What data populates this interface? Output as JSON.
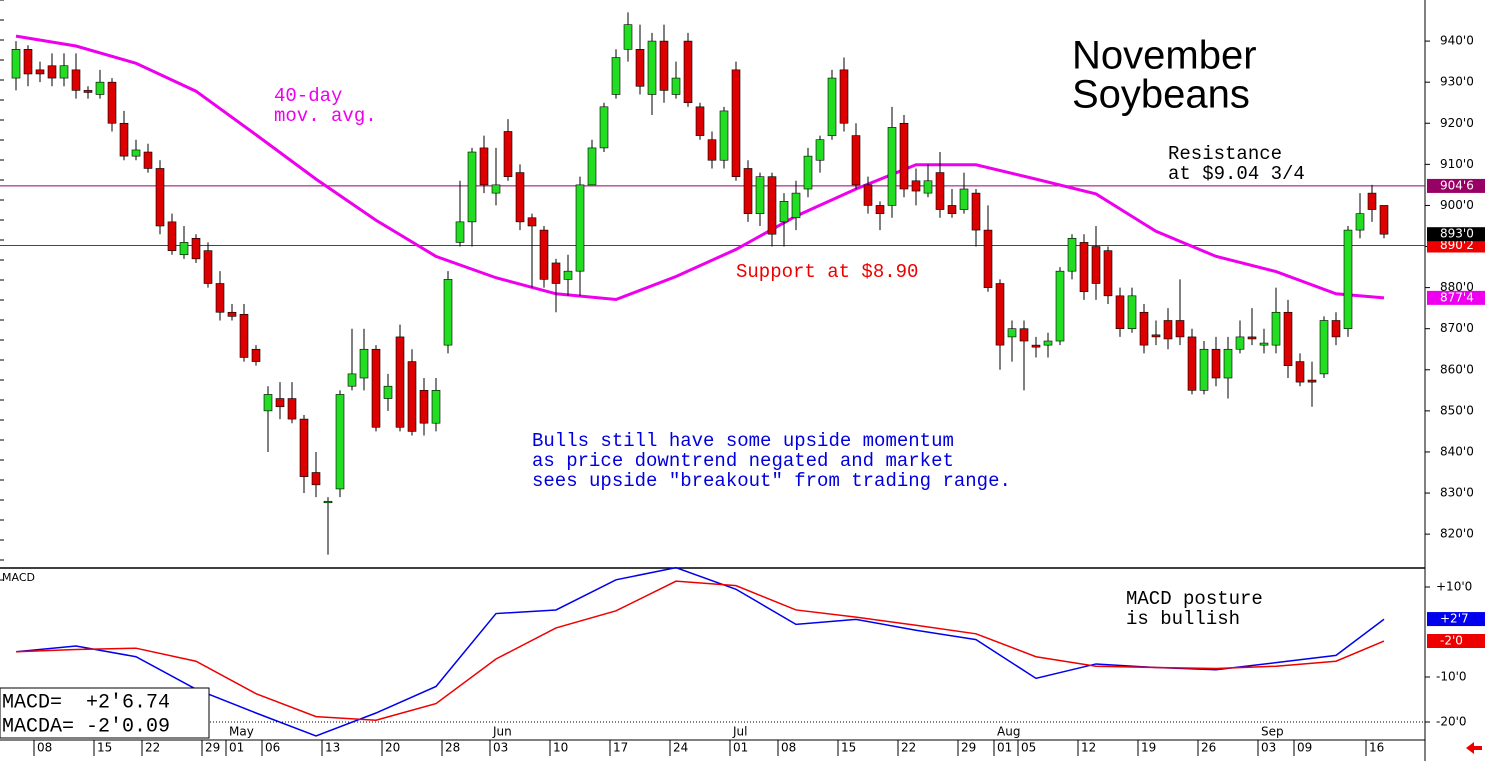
{
  "chart_data": {
    "type": "candlestick",
    "title_lines": [
      "November",
      "Soybeans"
    ],
    "categories": [
      null,
      null,
      "08",
      null,
      null,
      null,
      null,
      "15",
      null,
      null,
      null,
      "22",
      null,
      null,
      null,
      null,
      "29",
      null,
      "01",
      null,
      null,
      "06",
      null,
      null,
      null,
      null,
      "13",
      null,
      null,
      null,
      null,
      "20",
      null,
      null,
      null,
      null,
      "28",
      null,
      null,
      null,
      "03",
      null,
      null,
      null,
      null,
      "10",
      null,
      null,
      null,
      null,
      "17",
      null,
      null,
      null,
      null,
      "24",
      null,
      null,
      null,
      null,
      "01",
      null,
      null,
      null,
      "08",
      null,
      null,
      null,
      null,
      "15",
      null,
      null,
      null,
      null,
      "22",
      null,
      null,
      null,
      null,
      "29",
      null,
      null,
      "01",
      null,
      "05",
      null,
      null,
      null,
      null,
      "12",
      null,
      null,
      null,
      null,
      "19",
      null,
      null,
      null,
      null,
      "26",
      null,
      null,
      null,
      null,
      "03",
      null,
      null,
      "09",
      null,
      null,
      null,
      null,
      null,
      "16",
      null
    ],
    "months": [
      null,
      null,
      null,
      null,
      null,
      null,
      null,
      null,
      null,
      null,
      null,
      null,
      null,
      null,
      null,
      null,
      null,
      null,
      "May",
      null,
      null,
      null,
      null,
      null,
      null,
      null,
      null,
      null,
      null,
      null,
      null,
      null,
      null,
      null,
      null,
      null,
      null,
      null,
      null,
      null,
      "Jun",
      null,
      null,
      null,
      null,
      null,
      null,
      null,
      null,
      null,
      null,
      null,
      null,
      null,
      null,
      null,
      null,
      null,
      null,
      null,
      "Jul",
      null,
      null,
      null,
      null,
      null,
      null,
      null,
      null,
      null,
      null,
      null,
      null,
      null,
      null,
      null,
      null,
      null,
      null,
      null,
      null,
      null,
      "Aug",
      null,
      null,
      null,
      null,
      null,
      null,
      null,
      null,
      null,
      null,
      null,
      null,
      null,
      null,
      null,
      null,
      null,
      null,
      null,
      null,
      null,
      "Sep",
      null,
      null,
      null,
      null,
      null,
      null,
      null,
      null,
      null,
      null
    ],
    "ohlc": [
      [
        931,
        940,
        928,
        938
      ],
      [
        938,
        939,
        929,
        932
      ],
      [
        933,
        935,
        930,
        932
      ],
      [
        934,
        937,
        929,
        931
      ],
      [
        931,
        937,
        929,
        934
      ],
      [
        933,
        937,
        926,
        928
      ],
      [
        928,
        929,
        926,
        927.5
      ],
      [
        927,
        933,
        926,
        930
      ],
      [
        930,
        931,
        918,
        920
      ],
      [
        920,
        923,
        911,
        912
      ],
      [
        912,
        916,
        911,
        913.5
      ],
      [
        913,
        915,
        908,
        909
      ],
      [
        909,
        911,
        893,
        895
      ],
      [
        896,
        898,
        888,
        889
      ],
      [
        888,
        895,
        887,
        891
      ],
      [
        892,
        893,
        886,
        887
      ],
      [
        889,
        891,
        880,
        881
      ],
      [
        881,
        884,
        872,
        874
      ],
      [
        874,
        876,
        872,
        873
      ],
      [
        873.5,
        876,
        862,
        863
      ],
      [
        865,
        866,
        861,
        862
      ],
      [
        850,
        856,
        840,
        854
      ],
      [
        853,
        857,
        848,
        851
      ],
      [
        853,
        857,
        847,
        848
      ],
      [
        848,
        849,
        830,
        834
      ],
      [
        835,
        840,
        829,
        832
      ],
      [
        828,
        829,
        815,
        828
      ],
      [
        831,
        855,
        829,
        854
      ],
      [
        856,
        870,
        855,
        859
      ],
      [
        858,
        870,
        855,
        865
      ],
      [
        865,
        866,
        845,
        846
      ],
      [
        853,
        859,
        850,
        856
      ],
      [
        868,
        871,
        845,
        846
      ],
      [
        862,
        865,
        844,
        845
      ],
      [
        855,
        858,
        844,
        847
      ],
      [
        847,
        858,
        845,
        855
      ],
      [
        866,
        884,
        864,
        882
      ],
      [
        891,
        906,
        890,
        896
      ],
      [
        896,
        914,
        890,
        913
      ],
      [
        914,
        917,
        903,
        905
      ],
      [
        903,
        914,
        900,
        905
      ],
      [
        918,
        921,
        906,
        907
      ],
      [
        908,
        910,
        894,
        896
      ],
      [
        897,
        898,
        880,
        895
      ],
      [
        894,
        895,
        880,
        882
      ],
      [
        886,
        887,
        874,
        881
      ],
      [
        882,
        888,
        878,
        884
      ],
      [
        884,
        907,
        878,
        905
      ],
      [
        905,
        916,
        905,
        914
      ],
      [
        914,
        925,
        913,
        924
      ],
      [
        927,
        938,
        926,
        936
      ],
      [
        938,
        947,
        935,
        944
      ],
      [
        938,
        944,
        927,
        929
      ],
      [
        927,
        942,
        922,
        940
      ],
      [
        940,
        944,
        925,
        928
      ],
      [
        927,
        935,
        926,
        931
      ],
      [
        940,
        942,
        924,
        925
      ],
      [
        924,
        925,
        916,
        917
      ],
      [
        916,
        918,
        909,
        911
      ],
      [
        911,
        924,
        909,
        923
      ],
      [
        933,
        935,
        906,
        907
      ],
      [
        909,
        911,
        896,
        898
      ],
      [
        898,
        908,
        895,
        907
      ],
      [
        907,
        908,
        890,
        893
      ],
      [
        896,
        903,
        890,
        901
      ],
      [
        897,
        906,
        894,
        903
      ],
      [
        904,
        914,
        902,
        912
      ],
      [
        911,
        917,
        908,
        916
      ],
      [
        917,
        933,
        916,
        931
      ],
      [
        933,
        936,
        918,
        920
      ],
      [
        917,
        920,
        904,
        905
      ],
      [
        905,
        907,
        898,
        900
      ],
      [
        900,
        901,
        894,
        898
      ],
      [
        900,
        924,
        897,
        919
      ],
      [
        920,
        922,
        902,
        904
      ],
      [
        906,
        909,
        900,
        903.5
      ],
      [
        903,
        910,
        902,
        906
      ],
      [
        908,
        913,
        897,
        899
      ],
      [
        900,
        904,
        897,
        898
      ],
      [
        899,
        908,
        898,
        904
      ],
      [
        903,
        904,
        890,
        894
      ],
      [
        894,
        900,
        879,
        880
      ],
      [
        881,
        882,
        860,
        866
      ],
      [
        868,
        872,
        862,
        870
      ],
      [
        870,
        872,
        855,
        867
      ],
      [
        866,
        868,
        863,
        865.5
      ],
      [
        866,
        869,
        863,
        867
      ],
      [
        867,
        885,
        866,
        884
      ],
      [
        884,
        893,
        882,
        892
      ],
      [
        891,
        893,
        877,
        879
      ],
      [
        890,
        895,
        877,
        881
      ],
      [
        889,
        890,
        876,
        878
      ],
      [
        878,
        880,
        868,
        870
      ],
      [
        870,
        880,
        869,
        878
      ],
      [
        874,
        876,
        864,
        866
      ],
      [
        868.5,
        872,
        866,
        868
      ],
      [
        872,
        875,
        865,
        867.5
      ],
      [
        872,
        882,
        866,
        868
      ],
      [
        868,
        870,
        854,
        855
      ],
      [
        855,
        867,
        854,
        865
      ],
      [
        865,
        868,
        856,
        858
      ],
      [
        858,
        868,
        853,
        865
      ],
      [
        865,
        872,
        864,
        868
      ],
      [
        868,
        875,
        866,
        867.5
      ],
      [
        866,
        870,
        864,
        866.5
      ],
      [
        866,
        880,
        864,
        874
      ],
      [
        874,
        877,
        858,
        861
      ],
      [
        862,
        864,
        856,
        857
      ],
      [
        857.5,
        862,
        851,
        857
      ],
      [
        859,
        873,
        858,
        872
      ],
      [
        872,
        874,
        866,
        868
      ],
      [
        870,
        895,
        868,
        894
      ],
      [
        894,
        903,
        892,
        898
      ],
      [
        903,
        905,
        896,
        899
      ],
      [
        900,
        900,
        892,
        893
      ]
    ],
    "up_color": "#22dd22",
    "down_color": "#dd0000",
    "ylim": [
      812,
      950
    ],
    "yticks": [
      {
        "value": 820,
        "label": "820'0"
      },
      {
        "value": 830,
        "label": "830'0"
      },
      {
        "value": 840,
        "label": "840'0"
      },
      {
        "value": 850,
        "label": "850'0"
      },
      {
        "value": 860,
        "label": "860'0"
      },
      {
        "value": 870,
        "label": "870'0"
      },
      {
        "value": 880,
        "label": "880'0"
      },
      {
        "value": 890,
        "label": "890'0"
      },
      {
        "value": 900,
        "label": "900'0"
      },
      {
        "value": 910,
        "label": "910'0"
      },
      {
        "value": 920,
        "label": "920'0"
      },
      {
        "value": 930,
        "label": "930'0"
      },
      {
        "value": 940,
        "label": "940'0"
      }
    ],
    "moving_average": {
      "color": "#ee00ee",
      "x": [
        0,
        5,
        10,
        15,
        20,
        25,
        30,
        35,
        40,
        45,
        50,
        55,
        60,
        65,
        70,
        75,
        80,
        85,
        90,
        95,
        100,
        105,
        110,
        114
      ],
      "values": [
        941.2,
        938.8,
        934.6,
        927.8,
        917.2,
        906.4,
        896.4,
        887.6,
        882.4,
        878.5,
        877.1,
        882.7,
        889.3,
        897.4,
        904,
        909.9,
        909.9,
        906.4,
        902.8,
        893.7,
        887.6,
        883.9,
        878.5,
        877.5
      ]
    },
    "levels": [
      {
        "value": 904.75,
        "label": "904'6",
        "color": "#990066"
      },
      {
        "value": 890.25,
        "label": "890'2",
        "color": "#ee0000"
      }
    ],
    "price_tags": [
      {
        "value": 893,
        "label": "893'0",
        "color": "#000000"
      },
      {
        "value": 877.5,
        "label": "877'4",
        "color": "#ee00ee"
      }
    ],
    "annotations": [
      {
        "lines": [
          "40-day",
          "mov. avg."
        ],
        "color": "#ee00ee"
      },
      {
        "lines": [
          "Resistance",
          "at $9.04 3/4"
        ],
        "color": "#000000"
      },
      {
        "lines": [
          "Support at $8.90"
        ],
        "color": "#ee0000"
      },
      {
        "lines": [
          "Bulls still have some upside momentum",
          "as price downtrend negated and market",
          "sees upside \"breakout\" from trading range."
        ],
        "color": "#0000dd"
      },
      {
        "lines": [
          "MACD posture",
          "is bullish"
        ],
        "color": "#000000"
      }
    ],
    "macd": {
      "label": "MACD",
      "y2lim": [
        -24,
        14
      ],
      "y2ticks": [
        {
          "value": 10,
          "label": "+10'0"
        },
        {
          "value": -10,
          "label": "-10'0"
        },
        {
          "value": -20,
          "label": "-20'0"
        }
      ],
      "x": [
        0,
        5,
        10,
        15,
        20,
        25,
        30,
        35,
        40,
        45,
        50,
        55,
        60,
        65,
        70,
        75,
        80,
        85,
        90,
        95,
        100,
        105,
        110,
        114
      ],
      "series": [
        {
          "name": "MACD",
          "color": "#0000ee",
          "values": [
            -4.4,
            -3.1,
            -5.5,
            -12.7,
            -18,
            -23.1,
            -18,
            -12.1,
            4.1,
            4.9,
            11.6,
            14.3,
            9.5,
            1.7,
            2.8,
            0.4,
            -1.7,
            -10.3,
            -7.1,
            -7.9,
            -8.4,
            -6.8,
            -5.2,
            2.84
          ],
          "tag": {
            "value": 2.875,
            "label": "+2'7"
          }
        },
        {
          "name": "MACDA",
          "color": "#ee0000",
          "values": [
            -4.4,
            -3.9,
            -3.6,
            -6.5,
            -13.7,
            -18.8,
            -19.6,
            -15.9,
            -6,
            0.9,
            4.7,
            11.3,
            10.3,
            4.9,
            3.3,
            1.5,
            -0.4,
            -5.5,
            -7.6,
            -7.9,
            -8.1,
            -7.6,
            -6.5,
            -2.01
          ],
          "tag": {
            "value": -2,
            "label": "-2'0"
          }
        }
      ],
      "readout": [
        "MACD=  +2'6.74",
        "MACDA= -2'0.09"
      ]
    }
  }
}
